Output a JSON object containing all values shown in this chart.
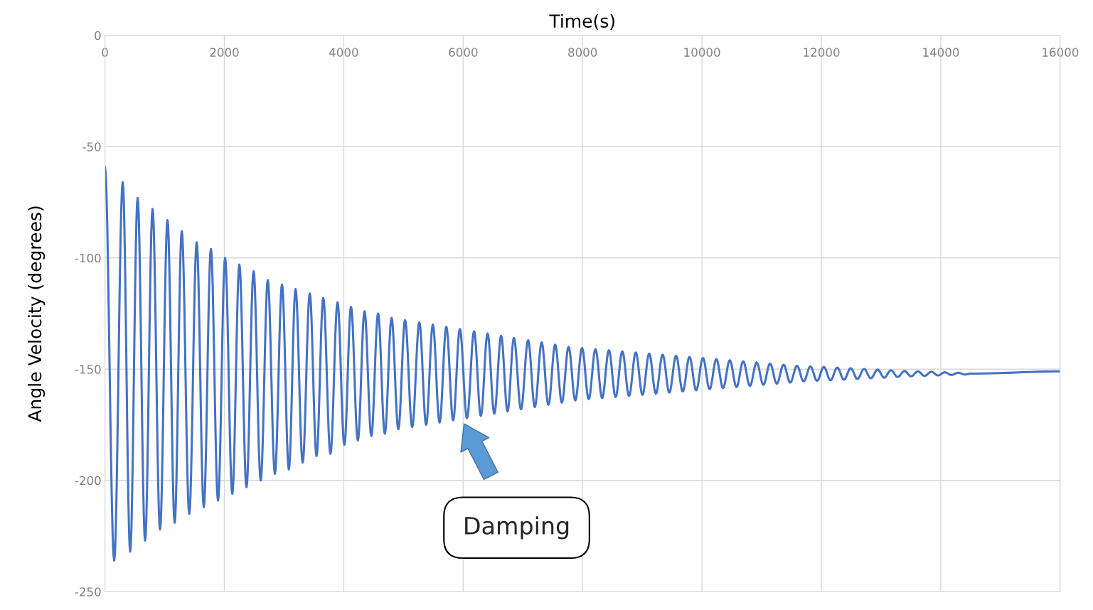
{
  "chart_data": {
    "type": "line",
    "xlabel": "Time(s)",
    "ylabel": "Angle Velocity (degrees)",
    "xlim": [
      0,
      16000
    ],
    "xticks": [
      0,
      2000,
      4000,
      6000,
      8000,
      10000,
      12000,
      14000,
      16000
    ],
    "ylim": [
      -250,
      0
    ],
    "yticks": [
      0,
      -50,
      -100,
      -150,
      -200,
      -250
    ],
    "grid": true,
    "legend": false,
    "series": [
      {
        "color": "#4472c4",
        "x": [
          0,
          155,
          298,
          423,
          548,
          673,
          798,
          923,
          1048,
          1168,
          1287,
          1412,
          1537,
          1656,
          1775,
          1894,
          2013,
          2133,
          2252,
          2371,
          2490,
          2609,
          2728,
          2847,
          2966,
          3080,
          3193,
          3312,
          3431,
          3544,
          3657,
          3777,
          3896,
          4010,
          4122,
          4236,
          4348,
          4462,
          4575,
          4688,
          4801,
          4914,
          5027,
          5146,
          5266,
          5380,
          5492,
          5605,
          5718,
          5832,
          5945,
          6064,
          6183,
          6296,
          6409,
          6522,
          6636,
          6743,
          6850,
          6969,
          7088,
          7200,
          7315,
          7428,
          7541,
          7653,
          7766,
          7878,
          7991,
          8103,
          8216,
          8328,
          8441,
          8553,
          8666,
          8778,
          8891,
          9003,
          9116,
          9228,
          9341,
          9453,
          9566,
          9678,
          9791,
          9903,
          10016,
          10128,
          10241,
          10353,
          10466,
          10578,
          10691,
          10803,
          10916,
          11028,
          11141,
          11253,
          11366,
          11478,
          11591,
          11703,
          11816,
          11928,
          12041,
          12153,
          12266,
          12378,
          12491,
          12603,
          12716,
          12828,
          12941,
          13053,
          13166,
          13278,
          13391,
          13503,
          13616,
          13728,
          13841,
          13953,
          14066,
          14178,
          14291,
          14403,
          14500,
          16000
        ],
        "values": [
          -59,
          -236,
          -66,
          -232,
          -73,
          -227,
          -78,
          -222,
          -83,
          -219,
          -88,
          -215,
          -93,
          -212,
          -96,
          -209,
          -100,
          -206,
          -103,
          -203,
          -106,
          -200,
          -110,
          -197,
          -112,
          -195,
          -114,
          -192,
          -116,
          -189,
          -118,
          -188,
          -120,
          -184,
          -122,
          -182,
          -124,
          -180,
          -125,
          -179,
          -127,
          -177,
          -128,
          -176,
          -129,
          -175,
          -130,
          -174,
          -131,
          -173,
          -132,
          -172,
          -133,
          -171,
          -134,
          -170,
          -135,
          -169,
          -136,
          -168,
          -137,
          -167,
          -138,
          -166,
          -139,
          -165,
          -140,
          -164,
          -140.5,
          -163.5,
          -141,
          -163,
          -141.5,
          -162.5,
          -142,
          -162,
          -142.5,
          -161.5,
          -143,
          -161,
          -143.5,
          -160.5,
          -144,
          -160,
          -144.5,
          -159.5,
          -145,
          -159,
          -145.5,
          -158.5,
          -146,
          -158,
          -146.5,
          -157.5,
          -147,
          -157,
          -147.5,
          -156.5,
          -148,
          -156,
          -148.5,
          -155.5,
          -148.8,
          -155.2,
          -149,
          -155,
          -149.3,
          -154.7,
          -149.6,
          -154.4,
          -149.9,
          -154.1,
          -150.2,
          -153.8,
          -150.5,
          -153.5,
          -150.8,
          -153.2,
          -151,
          -153,
          -151.2,
          -152.8,
          -151.4,
          -152.6,
          -151.6,
          -152.4,
          -152,
          -151
        ]
      }
    ],
    "annotations": [
      "Damping"
    ]
  }
}
